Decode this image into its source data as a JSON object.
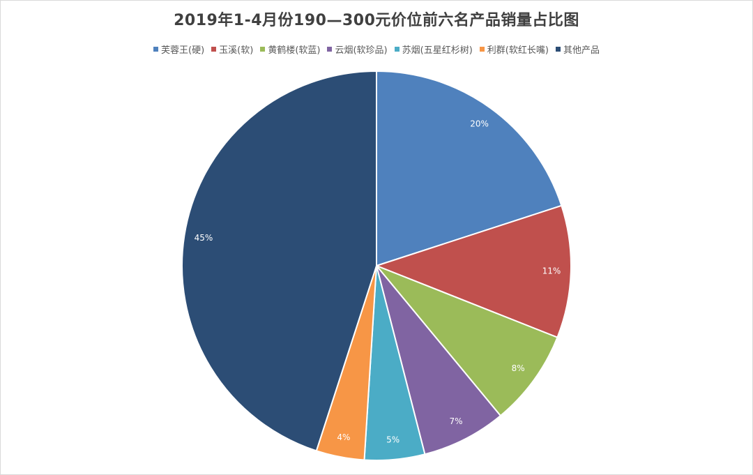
{
  "chart_data": {
    "type": "pie",
    "title": "2019年1-4月份190—300元价位前六名产品销量占比图",
    "legend_position": "top",
    "series": [
      {
        "categories": [
          "芙蓉王(硬)",
          "玉溪(软)",
          "黄鹤楼(软蓝)",
          "云烟(软珍品)",
          "苏烟(五星红杉树)",
          "利群(软红长嘴)",
          "其他产品"
        ],
        "values": [
          20,
          11,
          8,
          7,
          5,
          4,
          45
        ],
        "labels": [
          "20%",
          "11%",
          "8%",
          "7%",
          "5%",
          "4%",
          "45%"
        ],
        "colors": [
          "#4F81BD",
          "#C0504D",
          "#9BBB59",
          "#8064A2",
          "#4BACC6",
          "#F79646",
          "#2C4D75"
        ]
      }
    ]
  }
}
